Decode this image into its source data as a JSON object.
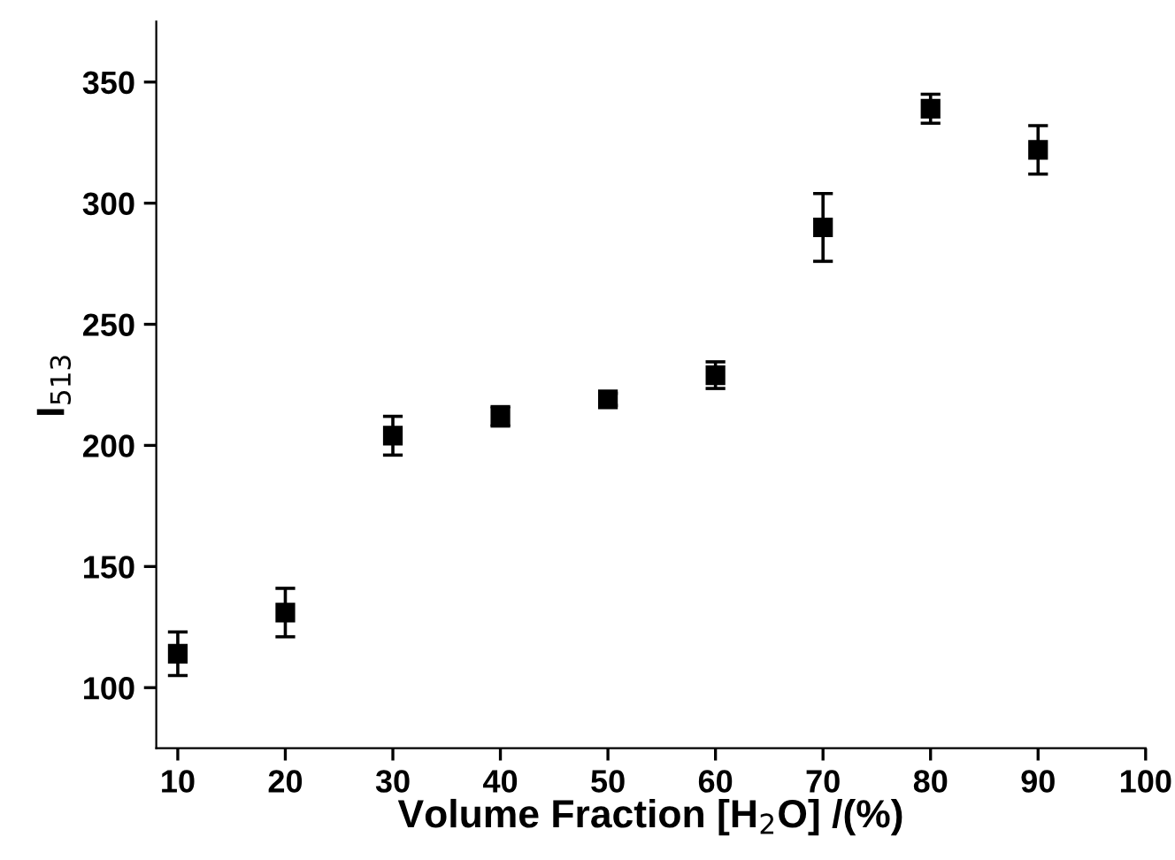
{
  "chart_data": {
    "type": "scatter",
    "xlabel": "Volume Fraction [H$_{2}$O] /(%)",
    "ylabel": "I$_{513}$",
    "x": [
      10,
      20,
      30,
      40,
      50,
      60,
      70,
      80,
      90
    ],
    "values": [
      114,
      131,
      204,
      212,
      219,
      229,
      290,
      339,
      322
    ],
    "errors": [
      9,
      10,
      8,
      4,
      2.5,
      5.5,
      14,
      6,
      10
    ],
    "color": "#000000",
    "marker": "square",
    "grid": false,
    "legend": false,
    "xlim": [
      8,
      100
    ],
    "xticks": [
      10,
      20,
      30,
      40,
      50,
      60,
      70,
      80,
      90,
      100
    ],
    "ylim": [
      75,
      375
    ],
    "yticks": [
      100,
      150,
      200,
      250,
      300,
      350
    ]
  }
}
